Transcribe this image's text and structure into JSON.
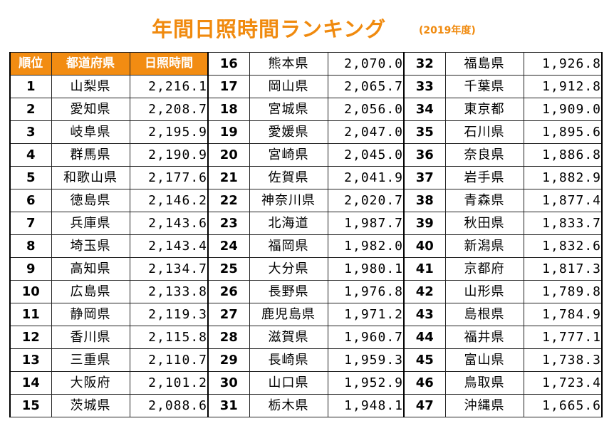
{
  "title": "年間日照時間ランキング",
  "subtitle": "(2019年度)",
  "headers": {
    "rank": "順位",
    "prefecture": "都道府県",
    "hours": "日照時間"
  },
  "accent_color": "#f28c12",
  "rows": [
    {
      "rank": "1",
      "pref": "山梨県",
      "hours": "2,216.1"
    },
    {
      "rank": "2",
      "pref": "愛知県",
      "hours": "2,208.7"
    },
    {
      "rank": "3",
      "pref": "岐阜県",
      "hours": "2,195.9"
    },
    {
      "rank": "4",
      "pref": "群馬県",
      "hours": "2,190.9"
    },
    {
      "rank": "5",
      "pref": "和歌山県",
      "hours": "2,177.6"
    },
    {
      "rank": "6",
      "pref": "徳島県",
      "hours": "2,146.2"
    },
    {
      "rank": "7",
      "pref": "兵庫県",
      "hours": "2,143.6"
    },
    {
      "rank": "8",
      "pref": "埼玉県",
      "hours": "2,143.4"
    },
    {
      "rank": "9",
      "pref": "高知県",
      "hours": "2,134.7"
    },
    {
      "rank": "10",
      "pref": "広島県",
      "hours": "2,133.8"
    },
    {
      "rank": "11",
      "pref": "静岡県",
      "hours": "2,119.3"
    },
    {
      "rank": "12",
      "pref": "香川県",
      "hours": "2,115.8"
    },
    {
      "rank": "13",
      "pref": "三重県",
      "hours": "2,110.7"
    },
    {
      "rank": "14",
      "pref": "大阪府",
      "hours": "2,101.2"
    },
    {
      "rank": "15",
      "pref": "茨城県",
      "hours": "2,088.6"
    },
    {
      "rank": "16",
      "pref": "熊本県",
      "hours": "2,070.0"
    },
    {
      "rank": "17",
      "pref": "岡山県",
      "hours": "2,065.7"
    },
    {
      "rank": "18",
      "pref": "宮城県",
      "hours": "2,056.0"
    },
    {
      "rank": "19",
      "pref": "愛媛県",
      "hours": "2,047.0"
    },
    {
      "rank": "20",
      "pref": "宮崎県",
      "hours": "2,045.0"
    },
    {
      "rank": "21",
      "pref": "佐賀県",
      "hours": "2,041.9"
    },
    {
      "rank": "22",
      "pref": "神奈川県",
      "hours": "2,020.7"
    },
    {
      "rank": "23",
      "pref": "北海道",
      "hours": "1,987.7"
    },
    {
      "rank": "24",
      "pref": "福岡県",
      "hours": "1,982.0"
    },
    {
      "rank": "25",
      "pref": "大分県",
      "hours": "1,980.1"
    },
    {
      "rank": "26",
      "pref": "長野県",
      "hours": "1,976.8"
    },
    {
      "rank": "27",
      "pref": "鹿児島県",
      "hours": "1,971.2"
    },
    {
      "rank": "28",
      "pref": "滋賀県",
      "hours": "1,960.7"
    },
    {
      "rank": "29",
      "pref": "長崎県",
      "hours": "1,959.3"
    },
    {
      "rank": "30",
      "pref": "山口県",
      "hours": "1,952.9"
    },
    {
      "rank": "31",
      "pref": "栃木県",
      "hours": "1,948.1"
    },
    {
      "rank": "32",
      "pref": "福島県",
      "hours": "1,926.8"
    },
    {
      "rank": "33",
      "pref": "千葉県",
      "hours": "1,912.8"
    },
    {
      "rank": "34",
      "pref": "東京都",
      "hours": "1,909.0"
    },
    {
      "rank": "35",
      "pref": "石川県",
      "hours": "1,895.6"
    },
    {
      "rank": "36",
      "pref": "奈良県",
      "hours": "1,886.8"
    },
    {
      "rank": "37",
      "pref": "岩手県",
      "hours": "1,882.9"
    },
    {
      "rank": "38",
      "pref": "青森県",
      "hours": "1,877.4"
    },
    {
      "rank": "39",
      "pref": "秋田県",
      "hours": "1,833.7"
    },
    {
      "rank": "40",
      "pref": "新潟県",
      "hours": "1,832.6"
    },
    {
      "rank": "41",
      "pref": "京都府",
      "hours": "1,817.3"
    },
    {
      "rank": "42",
      "pref": "山形県",
      "hours": "1,789.8"
    },
    {
      "rank": "43",
      "pref": "島根県",
      "hours": "1,784.9"
    },
    {
      "rank": "44",
      "pref": "福井県",
      "hours": "1,777.1"
    },
    {
      "rank": "45",
      "pref": "富山県",
      "hours": "1,738.3"
    },
    {
      "rank": "46",
      "pref": "鳥取県",
      "hours": "1,723.4"
    },
    {
      "rank": "47",
      "pref": "沖縄県",
      "hours": "1,665.6"
    }
  ]
}
